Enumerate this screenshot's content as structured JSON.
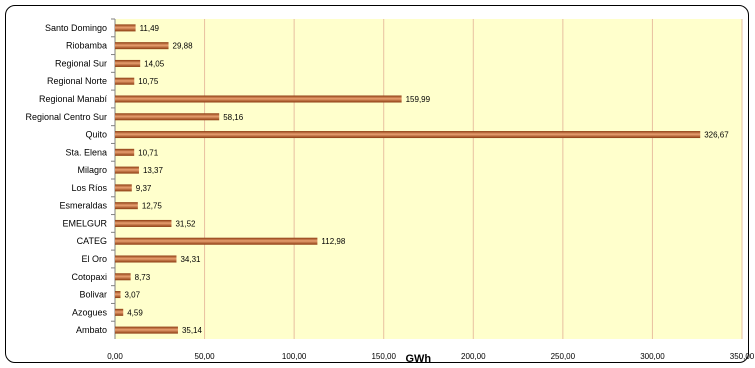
{
  "chart_data": {
    "type": "bar",
    "orientation": "horizontal",
    "categories": [
      "Santo Domingo",
      "Riobamba",
      "Regional Sur",
      "Regional Norte",
      "Regional Manabí",
      "Regional Centro Sur",
      "Quito",
      "Sta. Elena",
      "Milagro",
      "Los Ríos",
      "Esmeraldas",
      "EMELGUR",
      "CATEG",
      "El Oro",
      "Cotopaxi",
      "Bolivar",
      "Azogues",
      "Ambato"
    ],
    "values": [
      11.49,
      29.88,
      14.05,
      10.75,
      159.99,
      58.16,
      326.67,
      10.71,
      13.37,
      9.37,
      12.75,
      31.52,
      112.98,
      34.31,
      8.73,
      3.07,
      4.59,
      35.14
    ],
    "value_labels": [
      "11,49",
      "29,88",
      "14,05",
      "10,75",
      "159,99",
      "58,16",
      "326,67",
      "10,71",
      "13,37",
      "9,37",
      "12,75",
      "31,52",
      "112,98",
      "34,31",
      "8,73",
      "3,07",
      "4,59",
      "35,14"
    ],
    "xlabel": "GWh",
    "xlim": [
      0,
      350
    ],
    "xticks": [
      0,
      50,
      100,
      150,
      200,
      250,
      300,
      350
    ],
    "xtick_labels": [
      "0,00",
      "50,00",
      "100,00",
      "150,00",
      "200,00",
      "250,00",
      "300,00",
      "350,00"
    ],
    "grid": true,
    "colors": {
      "plot_background": "#ffffcc",
      "grid": "#e8c0a0",
      "bar_dark": "#8b3a0f",
      "bar_light": "#e8a070"
    }
  }
}
